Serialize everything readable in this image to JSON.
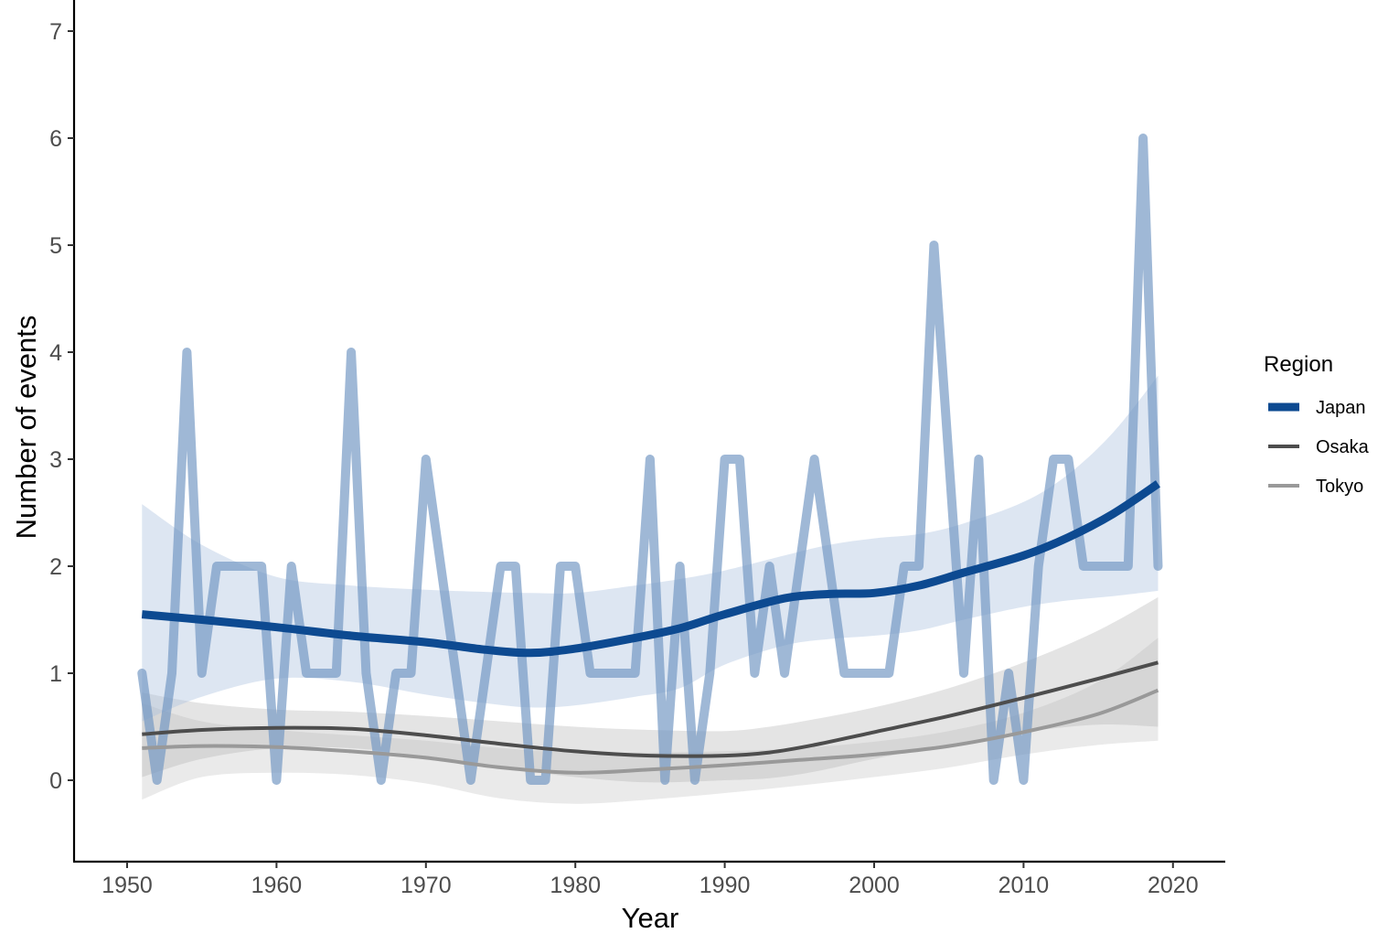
{
  "chart_data": {
    "type": "line",
    "title": "",
    "xlabel": "Year",
    "ylabel": "Number of events",
    "xlim": [
      1946,
      2023.5
    ],
    "ylim": [
      -0.75,
      7.3
    ],
    "x_ticks": [
      1950,
      1960,
      1970,
      1980,
      1990,
      2000,
      2010,
      2020
    ],
    "y_ticks": [
      0,
      1,
      2,
      3,
      4,
      5,
      6,
      7
    ],
    "grid": false,
    "legend": {
      "title": "Region",
      "position": "right",
      "entries": [
        "Japan",
        "Osaka",
        "Tokyo"
      ]
    },
    "colors": {
      "Japan": "#0d4a91",
      "Japan_raw": "#8aa8cb",
      "Japan_band": "#dce4ef",
      "Osaka": "#4d4d4d",
      "Tokyo": "#999999",
      "gray_band": "#d9d9d9"
    },
    "x": [
      1951,
      1952,
      1953,
      1954,
      1955,
      1956,
      1957,
      1958,
      1959,
      1960,
      1961,
      1962,
      1963,
      1964,
      1965,
      1966,
      1967,
      1968,
      1969,
      1970,
      1971,
      1972,
      1973,
      1974,
      1975,
      1976,
      1977,
      1978,
      1979,
      1980,
      1981,
      1982,
      1983,
      1984,
      1985,
      1986,
      1987,
      1988,
      1989,
      1990,
      1991,
      1992,
      1993,
      1994,
      1995,
      1996,
      1997,
      1998,
      1999,
      2000,
      2001,
      2002,
      2003,
      2004,
      2005,
      2006,
      2007,
      2008,
      2009,
      2010,
      2011,
      2012,
      2013,
      2014,
      2015,
      2016,
      2017,
      2018,
      2019
    ],
    "series": [
      {
        "name": "Japan (annual count)",
        "values": [
          1,
          0,
          1,
          4,
          1,
          2,
          2,
          2,
          2,
          0,
          2,
          1,
          1,
          1,
          4,
          1,
          0,
          1,
          1,
          3,
          2,
          1,
          0,
          1,
          2,
          2,
          0,
          0,
          2,
          2,
          1,
          1,
          1,
          1,
          3,
          0,
          2,
          0,
          1,
          3,
          3,
          1,
          2,
          1,
          2,
          3,
          2,
          1,
          1,
          1,
          1,
          2,
          2,
          5,
          3,
          1,
          3,
          0,
          1,
          0,
          2,
          3,
          3,
          2,
          2,
          2,
          2,
          6,
          2
        ]
      },
      {
        "name": "Japan",
        "kind": "smooth",
        "x": [
          1951,
          1955,
          1960,
          1965,
          1970,
          1974,
          1977,
          1980,
          1984,
          1987,
          1990,
          1994,
          1997,
          2000,
          2003,
          2006,
          2010,
          2013,
          2016,
          2019
        ],
        "values": [
          1.55,
          1.5,
          1.43,
          1.35,
          1.29,
          1.22,
          1.19,
          1.23,
          1.33,
          1.42,
          1.55,
          1.7,
          1.74,
          1.75,
          1.82,
          1.94,
          2.1,
          2.27,
          2.49,
          2.77
        ],
        "ci_upper": [
          2.58,
          2.2,
          1.9,
          1.82,
          1.78,
          1.76,
          1.75,
          1.75,
          1.82,
          1.88,
          1.96,
          2.1,
          2.2,
          2.26,
          2.3,
          2.4,
          2.6,
          2.86,
          3.25,
          3.78
        ],
        "ci_lower": [
          0.55,
          0.78,
          0.95,
          0.92,
          0.8,
          0.72,
          0.68,
          0.7,
          0.78,
          0.86,
          1.08,
          1.26,
          1.32,
          1.35,
          1.4,
          1.5,
          1.62,
          1.68,
          1.72,
          1.77
        ]
      },
      {
        "name": "Osaka",
        "kind": "smooth",
        "x": [
          1951,
          1955,
          1960,
          1965,
          1970,
          1975,
          1980,
          1985,
          1990,
          1993,
          1996,
          2000,
          2005,
          2010,
          2015,
          2019
        ],
        "values": [
          0.43,
          0.47,
          0.49,
          0.48,
          0.42,
          0.34,
          0.27,
          0.23,
          0.23,
          0.26,
          0.33,
          0.45,
          0.6,
          0.77,
          0.95,
          1.1
        ],
        "ci_upper": [
          0.82,
          0.72,
          0.66,
          0.64,
          0.6,
          0.55,
          0.5,
          0.47,
          0.46,
          0.5,
          0.57,
          0.68,
          0.86,
          1.1,
          1.4,
          1.71
        ],
        "ci_lower": [
          0.03,
          0.2,
          0.3,
          0.3,
          0.22,
          0.12,
          0.03,
          -0.02,
          0.0,
          0.02,
          0.08,
          0.2,
          0.33,
          0.45,
          0.52,
          0.5
        ]
      },
      {
        "name": "Tokyo",
        "kind": "smooth",
        "x": [
          1951,
          1955,
          1960,
          1965,
          1970,
          1975,
          1980,
          1985,
          1990,
          1995,
          2000,
          2005,
          2010,
          2015,
          2019
        ],
        "values": [
          0.3,
          0.32,
          0.31,
          0.27,
          0.21,
          0.12,
          0.07,
          0.1,
          0.14,
          0.19,
          0.24,
          0.32,
          0.45,
          0.62,
          0.84
        ],
        "ci_upper": [
          0.72,
          0.55,
          0.47,
          0.42,
          0.37,
          0.3,
          0.26,
          0.26,
          0.27,
          0.3,
          0.36,
          0.46,
          0.63,
          0.92,
          1.33
        ],
        "ci_lower": [
          -0.18,
          0.03,
          0.07,
          0.05,
          -0.03,
          -0.17,
          -0.22,
          -0.18,
          -0.12,
          -0.05,
          0.03,
          0.12,
          0.24,
          0.33,
          0.37
        ]
      }
    ]
  },
  "axes": {
    "x_title": "Year",
    "y_title": "Number of events",
    "x_tick_labels": [
      "1950",
      "1960",
      "1970",
      "1980",
      "1990",
      "2000",
      "2010",
      "2020"
    ],
    "y_tick_labels": [
      "0",
      "1",
      "2",
      "3",
      "4",
      "5",
      "6",
      "7"
    ]
  },
  "legend": {
    "title": "Region",
    "items": [
      {
        "label": "Japan",
        "color": "#0d4a91"
      },
      {
        "label": "Osaka",
        "color": "#4d4d4d"
      },
      {
        "label": "Tokyo",
        "color": "#999999"
      }
    ]
  }
}
